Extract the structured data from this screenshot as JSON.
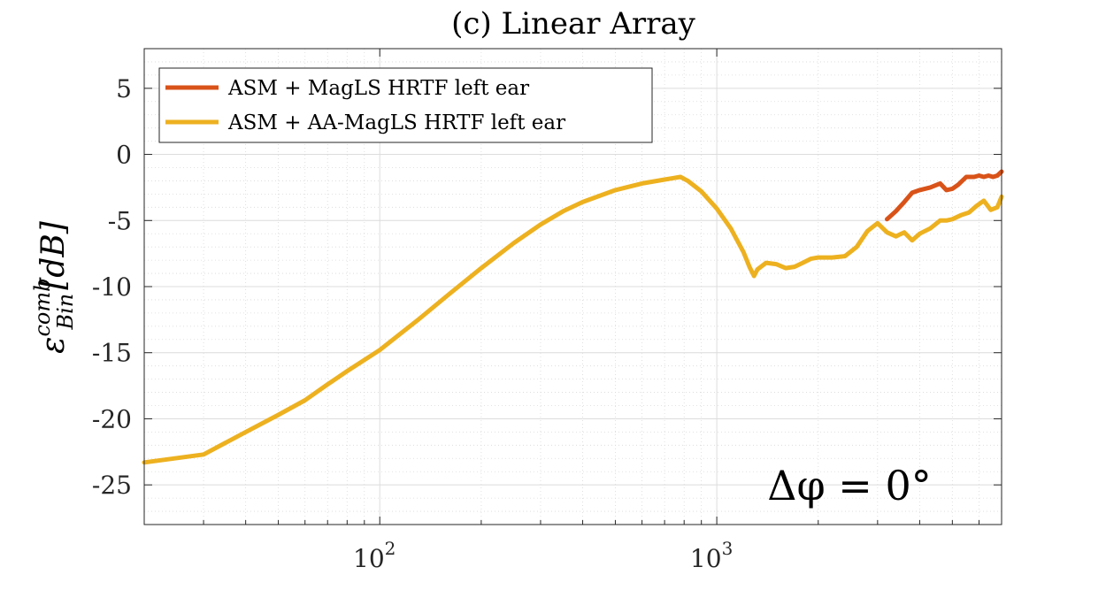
{
  "chart_data": {
    "type": "line",
    "title": "(c) Linear Array",
    "xlabel": "",
    "ylabel": "ε_Bin^comb [dB]",
    "ylabel_parts": {
      "symbol": "ε",
      "sub": "Bin",
      "sup": "comb",
      "unit": "[dB]"
    },
    "x_scale": "log",
    "xlim": [
      20,
      7000
    ],
    "ylim": [
      -28,
      8
    ],
    "x_ticks": [
      {
        "value": 100,
        "base": "10",
        "exp": "2"
      },
      {
        "value": 1000,
        "base": "10",
        "exp": "3"
      }
    ],
    "y_ticks": [
      5,
      0,
      -5,
      -10,
      -15,
      -20,
      -25
    ],
    "y_tick_labels": [
      "5",
      "0",
      "-5",
      "-10",
      "-15",
      "-20",
      "-25"
    ],
    "grid": true,
    "minor_grid": true,
    "legend_position": "top-left",
    "annotation": "Δφ = 0°",
    "series": [
      {
        "name": "ASM + MagLS HRTF left ear",
        "color": "#D95319",
        "x": [
          3200,
          3400,
          3600,
          3800,
          4000,
          4300,
          4600,
          4800,
          5000,
          5200,
          5500,
          5800,
          6000,
          6200,
          6400,
          6600,
          6800,
          7000
        ],
        "y": [
          -4.9,
          -4.3,
          -3.6,
          -2.9,
          -2.7,
          -2.5,
          -2.2,
          -2.7,
          -2.6,
          -2.3,
          -1.7,
          -1.7,
          -1.6,
          -1.7,
          -1.6,
          -1.7,
          -1.6,
          -1.3
        ]
      },
      {
        "name": "ASM + AA-MagLS HRTF left ear",
        "color": "#EDB120",
        "x": [
          20,
          30,
          40,
          50,
          60,
          70,
          80,
          100,
          130,
          160,
          200,
          250,
          300,
          350,
          400,
          500,
          600,
          700,
          780,
          820,
          900,
          1000,
          1100,
          1200,
          1250,
          1290,
          1320,
          1400,
          1500,
          1600,
          1700,
          1800,
          1900,
          2000,
          2200,
          2400,
          2600,
          2800,
          3000,
          3200,
          3400,
          3600,
          3800,
          4000,
          4300,
          4600,
          4800,
          5000,
          5300,
          5600,
          5900,
          6200,
          6500,
          6800,
          7000
        ],
        "y": [
          -23.3,
          -22.7,
          -21.0,
          -19.7,
          -18.6,
          -17.4,
          -16.4,
          -14.8,
          -12.5,
          -10.6,
          -8.6,
          -6.7,
          -5.3,
          -4.3,
          -3.6,
          -2.7,
          -2.2,
          -1.9,
          -1.7,
          -2.0,
          -2.8,
          -4.1,
          -5.6,
          -7.4,
          -8.5,
          -9.2,
          -8.7,
          -8.2,
          -8.3,
          -8.6,
          -8.5,
          -8.2,
          -7.9,
          -7.8,
          -7.8,
          -7.7,
          -7.0,
          -5.8,
          -5.2,
          -5.9,
          -6.2,
          -5.9,
          -6.5,
          -6.0,
          -5.6,
          -5.0,
          -5.0,
          -4.9,
          -4.6,
          -4.4,
          -3.9,
          -3.5,
          -4.2,
          -4.0,
          -3.2
        ]
      }
    ]
  }
}
